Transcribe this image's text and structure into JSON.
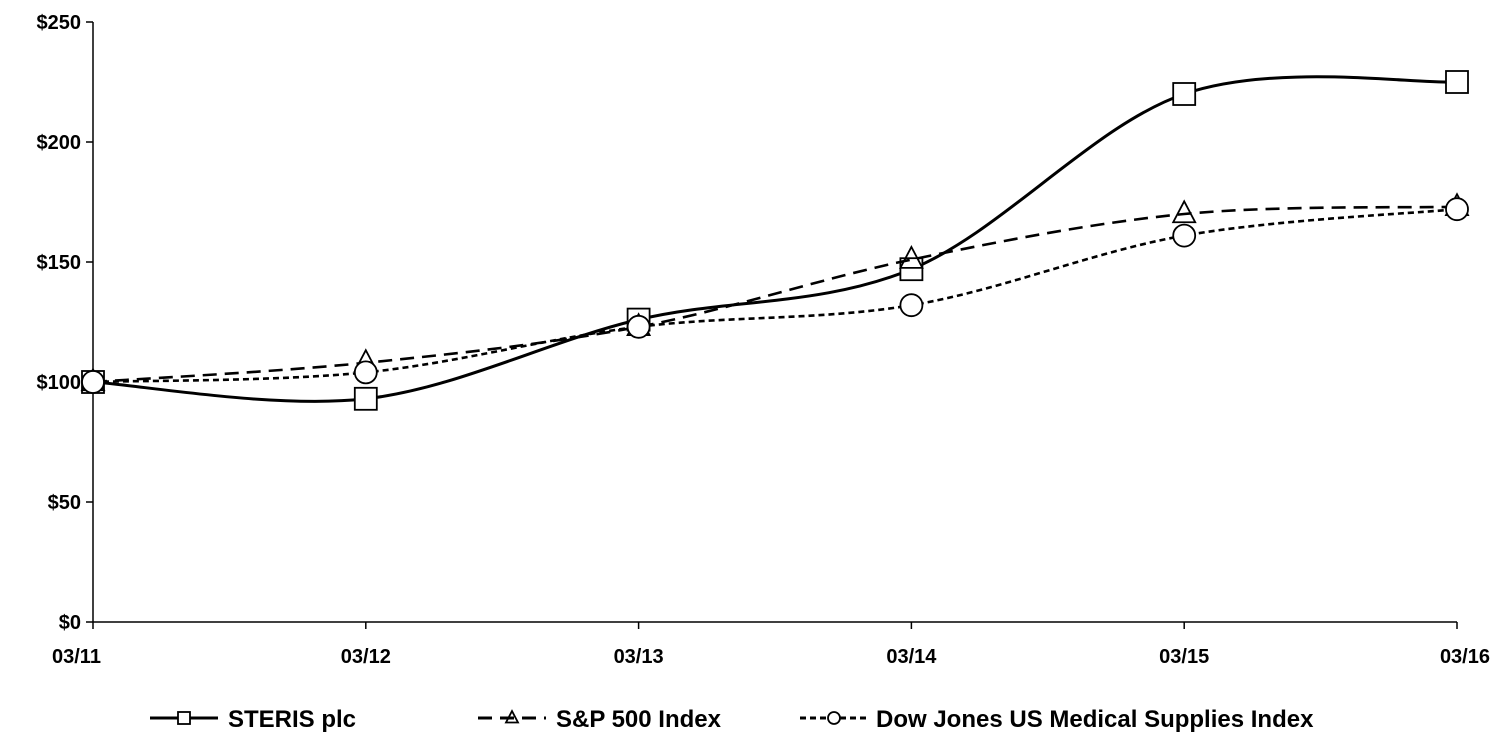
{
  "chart_data": {
    "type": "line",
    "title": "",
    "xlabel": "",
    "ylabel": "",
    "categories": [
      "03/11",
      "03/12",
      "03/13",
      "03/14",
      "03/15",
      "03/16"
    ],
    "ylim": [
      0,
      250
    ],
    "yticks": [
      0,
      50,
      100,
      150,
      200,
      250
    ],
    "ytick_labels": [
      "$0",
      "$50",
      "$100",
      "$150",
      "$200",
      "$250"
    ],
    "grid": false,
    "legend_position": "bottom",
    "series": [
      {
        "name": "STERIS plc",
        "values": [
          100,
          93,
          126,
          147,
          220,
          225
        ],
        "marker": "square",
        "line_style": "solid",
        "color": "#000000"
      },
      {
        "name": "S&P 500 Index",
        "values": [
          100,
          108,
          123,
          151,
          170,
          173
        ],
        "marker": "triangle",
        "line_style": "dashed",
        "color": "#000000"
      },
      {
        "name": "Dow Jones US Medical Supplies Index",
        "values": [
          100,
          104,
          123,
          132,
          161,
          172
        ],
        "marker": "circle",
        "line_style": "dotted",
        "color": "#000000"
      }
    ]
  }
}
